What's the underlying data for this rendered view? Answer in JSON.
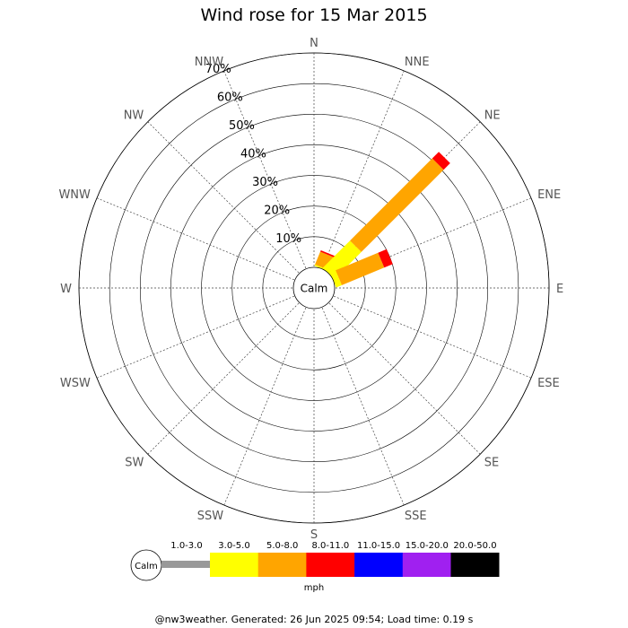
{
  "chart_data": {
    "type": "windrose",
    "title": "Wind rose for 15 Mar 2015",
    "center_label": "Calm",
    "directions": [
      "N",
      "NNE",
      "NE",
      "ENE",
      "E",
      "ESE",
      "SE",
      "SSE",
      "S",
      "SSW",
      "SW",
      "WSW",
      "W",
      "WNW",
      "NW",
      "NNW"
    ],
    "ring_labels": [
      "10%",
      "20%",
      "30%",
      "40%",
      "50%",
      "60%",
      "70%"
    ],
    "rmax_percent": 70,
    "speed_bins": [
      {
        "label": "1.0-3.0",
        "color": "#999999"
      },
      {
        "label": "3.0-5.0",
        "color": "#ffff00"
      },
      {
        "label": "5.0-8.0",
        "color": "#ffa500"
      },
      {
        "label": "8.0-11.0",
        "color": "#ff0000"
      },
      {
        "label": "11.0-15.0",
        "color": "#0000ff"
      },
      {
        "label": "15.0-20.0",
        "color": "#a020f0"
      },
      {
        "label": "20.0-50.0",
        "color": "#000000"
      }
    ],
    "calm_radius_percent": 4.5,
    "series": [
      {
        "direction": "NNE",
        "segments": [
          0,
          0.5,
          4.5,
          0.5,
          0,
          0,
          0
        ]
      },
      {
        "direction": "NE",
        "segments": [
          0,
          12.5,
          38,
          3,
          0,
          0,
          0
        ]
      },
      {
        "direction": "ENE",
        "segments": [
          0,
          2,
          15,
          3,
          0,
          0,
          0
        ]
      }
    ],
    "legend_unit": "mph",
    "legend_calm_label": "Calm"
  },
  "footer": "@nw3weather. Generated: 26 Jun 2025 09:54; Load time: 0.19 s"
}
